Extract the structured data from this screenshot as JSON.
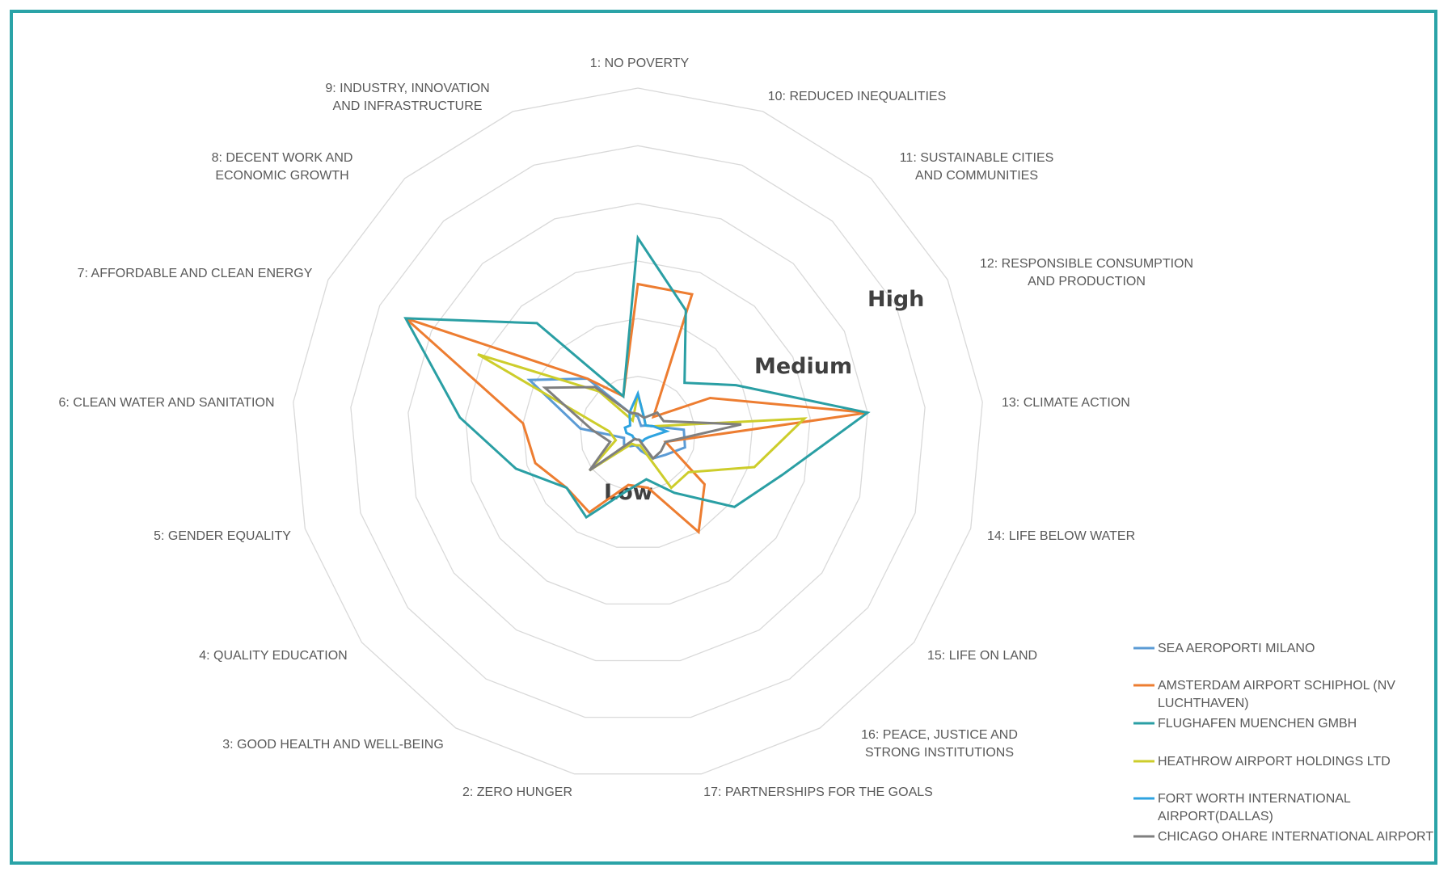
{
  "chart_data": {
    "type": "radar",
    "title": "",
    "axes": [
      {
        "label": "1: NO POVERTY"
      },
      {
        "label": "10: REDUCED INEQUALITIES"
      },
      {
        "label": "11: SUSTAINABLE CITIES AND COMMUNITIES"
      },
      {
        "label": "12: RESPONSIBLE CONSUMPTION AND PRODUCTION"
      },
      {
        "label": "13: CLIMATE ACTION"
      },
      {
        "label": "14: LIFE BELOW WATER"
      },
      {
        "label": "15: LIFE ON LAND"
      },
      {
        "label": "16: PEACE, JUSTICE AND STRONG INSTITUTIONS"
      },
      {
        "label": "17: PARTNERSHIPS FOR THE GOALS"
      },
      {
        "label": "2: ZERO HUNGER"
      },
      {
        "label": "3: GOOD HEALTH AND WELL-BEING"
      },
      {
        "label": "4: QUALITY EDUCATION"
      },
      {
        "label": "5: GENDER EQUALITY"
      },
      {
        "label": "6: CLEAN WATER AND SANITATION"
      },
      {
        "label": "7: AFFORDABLE AND CLEAN ENERGY"
      },
      {
        "label": "8: DECENT WORK AND ECONOMIC GROWTH"
      },
      {
        "label": "9: INDUSTRY, INNOVATION AND INFRASTRUCTURE"
      }
    ],
    "rmax": 6,
    "gridlines": 6,
    "level_labels": [
      {
        "text": "Low",
        "level": 1.2
      },
      {
        "text": "Medium",
        "level": 2.7
      },
      {
        "text": "High",
        "level": 4.1
      }
    ],
    "legend_position": "bottom-right",
    "series": [
      {
        "name": "SEA AEROPORTI MILANO",
        "color": "#5b9bd5",
        "values": [
          0.3,
          0.15,
          0.2,
          0.3,
          0.8,
          0.85,
          0.6,
          0.5,
          0.3,
          0.2,
          0.25,
          0.3,
          0.25,
          1.0,
          2.1,
          1.3,
          0.4
        ]
      },
      {
        "name": "AMSTERDAM AIRPORT SCHIPHOL (NV LUCHTHAVEN)",
        "color": "#ed7d31",
        "values": [
          2.6,
          2.6,
          0.4,
          1.4,
          4.0,
          0.5,
          1.45,
          2.0,
          0.95,
          0.9,
          1.6,
          1.55,
          1.85,
          2.0,
          4.5,
          1.3,
          0.7
        ]
      },
      {
        "name": "FLUGHAFEN MUENCHEN GMBH",
        "color": "#2a9fa4",
        "values": [
          3.4,
          2.3,
          1.2,
          1.9,
          4.0,
          2.6,
          2.1,
          1.2,
          0.8,
          1.0,
          1.7,
          1.55,
          2.2,
          3.1,
          4.5,
          2.6,
          0.7
        ]
      },
      {
        "name": "HEATHROW AIRPORT HOLDINGS LTD",
        "color": "#cdcd2b",
        "values": [
          0.7,
          0.3,
          0.2,
          0.3,
          2.9,
          2.1,
          1.1,
          1.1,
          0.2,
          0.2,
          0.2,
          1.05,
          0.4,
          0.5,
          3.1,
          1.0,
          0.25
        ]
      },
      {
        "name": "FORT WORTH INTERNATIONAL AIRPORT(DALLAS)",
        "color": "#2ea3e0",
        "values": [
          0.7,
          0.3,
          0.2,
          0.3,
          0.5,
          0.2,
          0.15,
          0.15,
          0.1,
          0.1,
          0.1,
          0.1,
          0.1,
          0.2,
          0.25,
          0.2,
          0.4
        ]
      },
      {
        "name": "CHICAGO OHARE INTERNATIONAL AIRPORT",
        "color": "#7f7f7f",
        "values": [
          0.35,
          0.3,
          0.5,
          0.5,
          1.8,
          0.5,
          0.5,
          0.5,
          0.1,
          0.1,
          0.1,
          1.05,
          0.5,
          0.8,
          1.8,
          1.1,
          0.4
        ]
      }
    ]
  }
}
